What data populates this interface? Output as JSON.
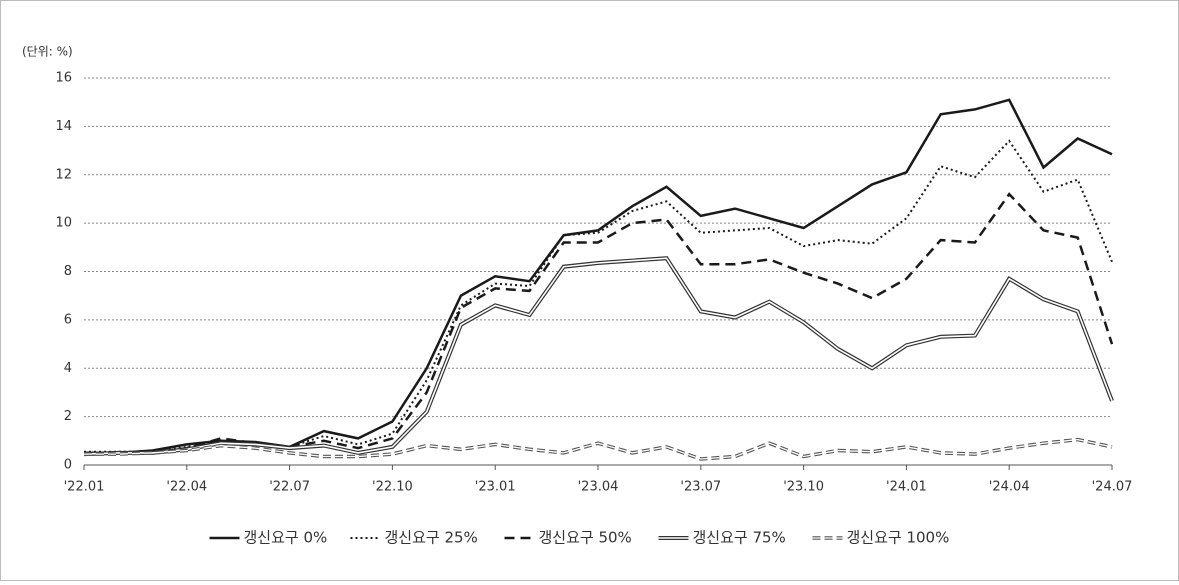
{
  "chart_data": {
    "type": "line",
    "unit_label": "(단위: %)",
    "categories": [
      "'22.01",
      null,
      null,
      "'22.04",
      null,
      null,
      "'22.07",
      null,
      null,
      "'22.10",
      null,
      null,
      "'23.01",
      null,
      null,
      "'23.04",
      null,
      null,
      "'23.07",
      null,
      null,
      "'23.10",
      null,
      null,
      "'24.01",
      null,
      null,
      "'24.04",
      null,
      null,
      "'24.07"
    ],
    "ylim": [
      0,
      16
    ],
    "yticks": [
      0,
      2,
      4,
      6,
      8,
      10,
      12,
      14,
      16
    ],
    "grid": true,
    "legend": "bottom",
    "series": [
      {
        "name": "갱신요구 0%",
        "color": "#1a1a1a",
        "style": "solid",
        "values": [
          0.5,
          0.5,
          0.6,
          0.85,
          1.0,
          0.95,
          0.75,
          1.4,
          1.1,
          1.8,
          4.0,
          7.0,
          7.8,
          7.6,
          9.5,
          9.7,
          10.7,
          11.5,
          10.3,
          10.6,
          10.2,
          9.8,
          10.7,
          11.6,
          12.1,
          14.5,
          14.7,
          15.1,
          12.3,
          13.5,
          12.85
        ]
      },
      {
        "name": "갱신요구 25%",
        "color": "#1a1a1a",
        "style": "dotted",
        "values": [
          0.55,
          0.55,
          0.55,
          0.75,
          0.95,
          0.95,
          0.75,
          1.2,
          0.85,
          1.3,
          3.5,
          6.6,
          7.5,
          7.4,
          9.5,
          9.6,
          10.5,
          10.9,
          9.6,
          9.7,
          9.8,
          9.05,
          9.3,
          9.15,
          10.2,
          12.35,
          11.9,
          13.4,
          11.3,
          11.8,
          8.4
        ]
      },
      {
        "name": "갱신요구 50%",
        "color": "#1a1a1a",
        "style": "dashed",
        "values": [
          0.5,
          0.5,
          0.5,
          0.7,
          1.1,
          0.9,
          0.75,
          1.0,
          0.7,
          1.1,
          3.0,
          6.5,
          7.3,
          7.2,
          9.2,
          9.2,
          10.0,
          10.15,
          8.3,
          8.3,
          8.5,
          7.95,
          7.5,
          6.9,
          7.7,
          9.3,
          9.2,
          11.2,
          9.7,
          9.4,
          5.0
        ]
      },
      {
        "name": "갱신요구 75%",
        "color": "#333333",
        "style": "double",
        "values": [
          0.45,
          0.5,
          0.5,
          0.65,
          0.9,
          0.85,
          0.7,
          0.8,
          0.5,
          0.75,
          2.2,
          5.8,
          6.6,
          6.2,
          8.2,
          8.35,
          8.45,
          8.55,
          6.35,
          6.1,
          6.75,
          5.9,
          4.8,
          4.0,
          4.95,
          5.3,
          5.35,
          7.7,
          6.85,
          6.35,
          2.65
        ]
      },
      {
        "name": "갱신요구 100%",
        "color": "#555555",
        "style": "double-dashed",
        "values": [
          0.45,
          0.45,
          0.5,
          0.6,
          0.8,
          0.7,
          0.5,
          0.35,
          0.35,
          0.45,
          0.8,
          0.65,
          0.85,
          0.65,
          0.5,
          0.9,
          0.5,
          0.75,
          0.25,
          0.35,
          0.9,
          0.35,
          0.6,
          0.55,
          0.75,
          0.5,
          0.45,
          0.7,
          0.9,
          1.05,
          0.75
        ]
      }
    ]
  }
}
